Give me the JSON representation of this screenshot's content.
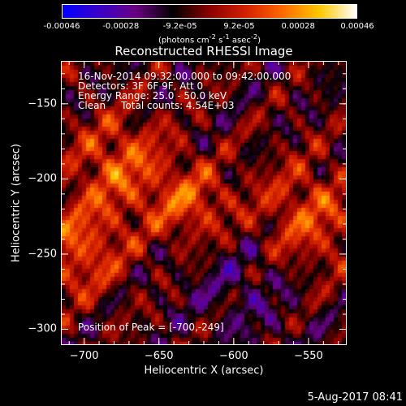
{
  "colorbar": {
    "tick_labels": [
      "-0.00046",
      "-0.00028",
      "-9.2e-05",
      "9.2e-05",
      "0.00028",
      "0.00046"
    ],
    "unit_label_html": "(photons cm<sup>-2</sup> s<sup>-1</sup> asec<sup>-2</sup>)",
    "colors": [
      "#0000ff",
      "#3a00c8",
      "#6a0080",
      "#000000",
      "#8a0000",
      "#d42000",
      "#ff6a00",
      "#ffc800",
      "#ffffff"
    ]
  },
  "info": {
    "time_range": "16-Nov-2014 09:32:00.000 to 09:42:00.000",
    "detectors": "Detectors: 3F 6F 9F, Att 0",
    "energy": "Energy Range: 25.0 - 50.0 keV",
    "method": "Clean     Total counts: 4.54E+03",
    "peak": "Position of Peak = [-700,-249]"
  },
  "footer": {
    "date": "5-Aug-2017 08:41"
  },
  "chart_data": {
    "type": "heatmap",
    "title": "Reconstructed RHESSI Image",
    "xlabel": "Heliocentric X (arcsec)",
    "ylabel": "Heliocentric Y (arcsec)",
    "xlim": [
      -715,
      -525
    ],
    "ylim": [
      -310,
      -122
    ],
    "xticks": [
      -700,
      -650,
      -600,
      -550
    ],
    "yticks": [
      -150,
      -200,
      -250,
      -300
    ],
    "colorbar_range": [
      -0.00046,
      0.00046
    ],
    "grid": false
  }
}
